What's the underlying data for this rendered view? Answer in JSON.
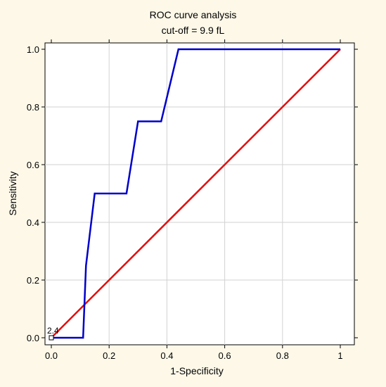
{
  "chart_data": {
    "type": "line",
    "title": "ROC curve analysis",
    "subtitle": "cut-off = 9.9 fL",
    "xlabel": "1-Specificity",
    "ylabel": "Sensitivity",
    "xlim": [
      0,
      1
    ],
    "ylim": [
      0,
      1
    ],
    "xticks": [
      0,
      0.2,
      0.4,
      0.6,
      0.8,
      1
    ],
    "xtick_labels": [
      "0.0",
      "0.2",
      "0.4",
      "0.6",
      "0.8",
      "1"
    ],
    "yticks": [
      0,
      0.2,
      0.4,
      0.6,
      0.8,
      1
    ],
    "ytick_labels": [
      "0.0",
      "0.2",
      "0.4",
      "0.6",
      "0.8",
      "1.0"
    ],
    "grid": true,
    "series": [
      {
        "color": "#0000cc",
        "x": [
          0,
          0.11,
          0.12,
          0.15,
          0.26,
          0.3,
          0.38,
          0.44,
          1.0
        ],
        "y": [
          0,
          0,
          0.25,
          0.5,
          0.5,
          0.75,
          0.75,
          1.0,
          1.0
        ]
      },
      {
        "color": "#e01010",
        "x": [
          0,
          1
        ],
        "y": [
          0,
          1
        ]
      }
    ],
    "annotations": [
      {
        "text": "2.4",
        "x": 0.0,
        "y": 0.0
      }
    ]
  }
}
